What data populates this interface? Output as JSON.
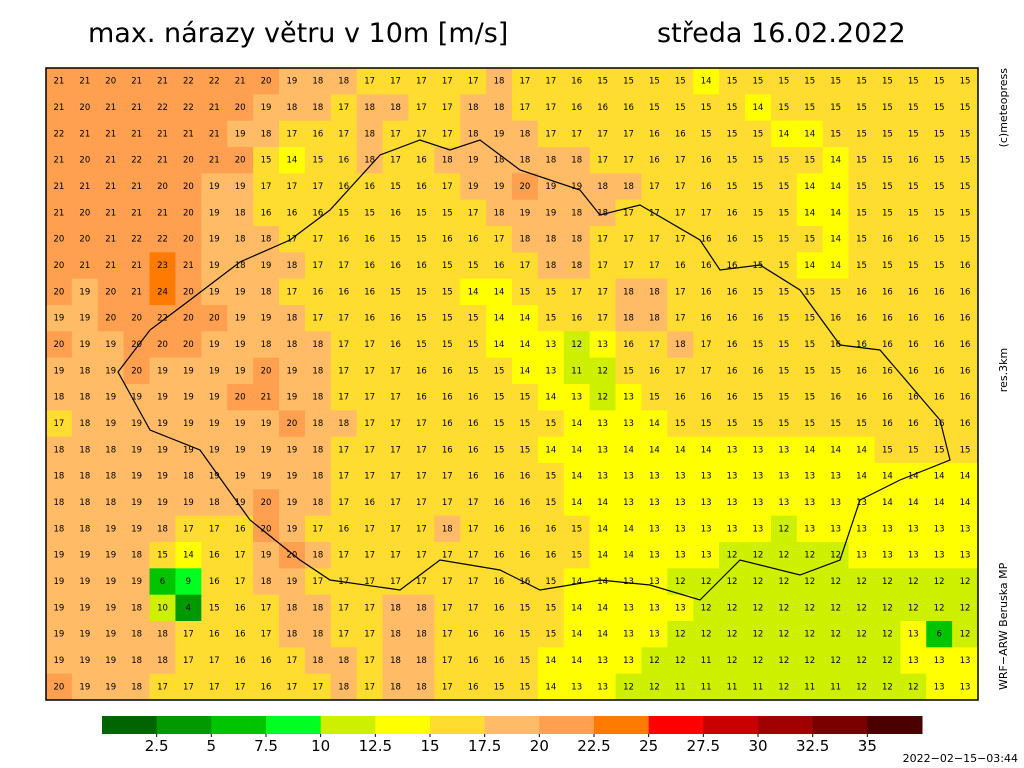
{
  "header": {
    "title": "max. nárazy větru v 10m [m/s]",
    "date": "středa 16.02.2022"
  },
  "side_labels": {
    "copyright": "(c)meteopress",
    "resolution": "res.3km",
    "model": "WRF−ARW Beruska MP"
  },
  "timestamp": "2022−02−15−03:44",
  "colorbar": {
    "ticks": [
      2.5,
      5,
      7.5,
      10,
      12.5,
      15,
      17.5,
      20,
      22.5,
      25,
      27.5,
      30,
      32.5,
      35
    ],
    "colors": [
      "#006400",
      "#009a00",
      "#00c400",
      "#00ff20",
      "#ccf000",
      "#ffff00",
      "#ffdc30",
      "#ffbb66",
      "#ff9f50",
      "#ff7a00",
      "#ff0000",
      "#c80000",
      "#a00000",
      "#7a0000",
      "#4a0000"
    ]
  },
  "grid": {
    "rows": [
      [
        21,
        21,
        20,
        21,
        21,
        22,
        22,
        21,
        20,
        19,
        18,
        18,
        17,
        17,
        17,
        17,
        17,
        18,
        17,
        17,
        16,
        15,
        15,
        15,
        15,
        14,
        15,
        15,
        15,
        15,
        15,
        15,
        15,
        15,
        15,
        15
      ],
      [
        21,
        20,
        21,
        21,
        22,
        22,
        21,
        20,
        19,
        18,
        18,
        17,
        18,
        18,
        17,
        17,
        18,
        18,
        17,
        17,
        16,
        16,
        16,
        15,
        15,
        15,
        15,
        14,
        15,
        15,
        15,
        15,
        15,
        15,
        15,
        15
      ],
      [
        22,
        21,
        21,
        21,
        21,
        21,
        21,
        19,
        18,
        17,
        16,
        17,
        18,
        17,
        17,
        17,
        18,
        19,
        18,
        17,
        17,
        17,
        17,
        16,
        16,
        15,
        15,
        15,
        14,
        14,
        15,
        15,
        15,
        15,
        15,
        15
      ],
      [
        21,
        20,
        21,
        22,
        21,
        20,
        21,
        20,
        15,
        14,
        15,
        16,
        18,
        17,
        16,
        18,
        19,
        18,
        18,
        18,
        18,
        17,
        17,
        16,
        17,
        16,
        15,
        15,
        15,
        15,
        14,
        15,
        15,
        16,
        15,
        15
      ],
      [
        21,
        21,
        21,
        21,
        20,
        20,
        19,
        19,
        17,
        17,
        17,
        16,
        16,
        15,
        16,
        17,
        19,
        19,
        20,
        19,
        19,
        18,
        18,
        17,
        17,
        16,
        15,
        15,
        15,
        14,
        14,
        15,
        15,
        15,
        15,
        15
      ],
      [
        21,
        20,
        21,
        21,
        21,
        20,
        19,
        18,
        16,
        16,
        16,
        15,
        15,
        16,
        15,
        15,
        17,
        18,
        19,
        19,
        18,
        18,
        17,
        17,
        17,
        17,
        16,
        15,
        15,
        14,
        14,
        15,
        15,
        15,
        15,
        15
      ],
      [
        20,
        20,
        21,
        22,
        22,
        20,
        19,
        18,
        18,
        17,
        17,
        16,
        16,
        15,
        15,
        16,
        16,
        17,
        18,
        18,
        18,
        17,
        17,
        17,
        17,
        16,
        16,
        15,
        15,
        15,
        14,
        15,
        16,
        16,
        15,
        15
      ],
      [
        20,
        21,
        21,
        21,
        23,
        21,
        19,
        18,
        19,
        18,
        17,
        17,
        16,
        16,
        16,
        15,
        15,
        16,
        17,
        18,
        18,
        17,
        17,
        17,
        16,
        16,
        16,
        15,
        15,
        14,
        14,
        15,
        15,
        15,
        15,
        16
      ],
      [
        20,
        19,
        20,
        21,
        24,
        20,
        19,
        19,
        18,
        17,
        16,
        16,
        16,
        15,
        15,
        15,
        14,
        14,
        15,
        15,
        17,
        17,
        18,
        18,
        17,
        16,
        16,
        15,
        15,
        15,
        15,
        16,
        16,
        16,
        16,
        16
      ],
      [
        19,
        19,
        20,
        20,
        22,
        20,
        20,
        19,
        19,
        18,
        17,
        17,
        16,
        16,
        15,
        15,
        15,
        14,
        14,
        15,
        16,
        17,
        18,
        18,
        17,
        16,
        16,
        16,
        15,
        15,
        16,
        16,
        16,
        16,
        16,
        16
      ],
      [
        20,
        19,
        19,
        20,
        20,
        20,
        19,
        19,
        18,
        18,
        18,
        17,
        17,
        16,
        15,
        15,
        15,
        14,
        14,
        13,
        12,
        13,
        16,
        17,
        18,
        17,
        16,
        15,
        15,
        15,
        16,
        16,
        16,
        16,
        16,
        16
      ],
      [
        19,
        18,
        19,
        20,
        19,
        19,
        19,
        19,
        20,
        19,
        18,
        17,
        17,
        17,
        16,
        16,
        15,
        15,
        14,
        13,
        11,
        12,
        15,
        16,
        17,
        17,
        16,
        16,
        15,
        15,
        15,
        16,
        16,
        16,
        16,
        16
      ],
      [
        18,
        18,
        19,
        19,
        19,
        19,
        19,
        20,
        21,
        19,
        18,
        17,
        17,
        17,
        16,
        16,
        16,
        15,
        15,
        14,
        13,
        12,
        13,
        15,
        16,
        16,
        16,
        15,
        15,
        15,
        16,
        16,
        16,
        16,
        16,
        16
      ],
      [
        17,
        18,
        19,
        19,
        19,
        19,
        19,
        19,
        19,
        20,
        18,
        18,
        17,
        17,
        17,
        16,
        16,
        15,
        15,
        15,
        14,
        13,
        13,
        14,
        15,
        15,
        15,
        15,
        15,
        15,
        15,
        15,
        16,
        16,
        16,
        16
      ],
      [
        18,
        18,
        18,
        19,
        19,
        19,
        19,
        19,
        19,
        19,
        18,
        17,
        17,
        17,
        17,
        16,
        16,
        15,
        15,
        14,
        14,
        13,
        14,
        14,
        14,
        14,
        13,
        13,
        13,
        14,
        14,
        14,
        15,
        15,
        15,
        15
      ],
      [
        18,
        18,
        18,
        19,
        19,
        18,
        19,
        19,
        19,
        19,
        18,
        17,
        17,
        17,
        17,
        17,
        16,
        16,
        16,
        15,
        14,
        13,
        13,
        13,
        13,
        13,
        13,
        13,
        13,
        13,
        13,
        14,
        14,
        14,
        14,
        14
      ],
      [
        18,
        18,
        18,
        19,
        19,
        19,
        18,
        19,
        20,
        19,
        18,
        17,
        16,
        17,
        17,
        17,
        17,
        16,
        16,
        15,
        14,
        14,
        13,
        13,
        13,
        13,
        13,
        13,
        13,
        13,
        13,
        13,
        14,
        14,
        14,
        14
      ],
      [
        18,
        18,
        19,
        19,
        18,
        17,
        17,
        16,
        20,
        19,
        17,
        16,
        17,
        17,
        17,
        18,
        17,
        16,
        16,
        16,
        15,
        14,
        14,
        13,
        13,
        13,
        13,
        13,
        12,
        13,
        13,
        13,
        13,
        13,
        13,
        13
      ],
      [
        19,
        19,
        19,
        18,
        15,
        14,
        16,
        17,
        19,
        20,
        18,
        17,
        17,
        17,
        17,
        17,
        17,
        16,
        16,
        16,
        15,
        14,
        14,
        13,
        13,
        13,
        12,
        12,
        12,
        12,
        12,
        13,
        13,
        13,
        13,
        13
      ],
      [
        19,
        19,
        19,
        19,
        6,
        9,
        16,
        17,
        18,
        19,
        17,
        17,
        17,
        17,
        17,
        17,
        17,
        16,
        16,
        15,
        14,
        14,
        13,
        13,
        12,
        12,
        12,
        12,
        12,
        12,
        12,
        12,
        12,
        12,
        12,
        12
      ],
      [
        19,
        19,
        19,
        18,
        10,
        4,
        15,
        16,
        17,
        18,
        18,
        17,
        17,
        18,
        18,
        17,
        17,
        16,
        15,
        15,
        14,
        14,
        13,
        13,
        13,
        12,
        12,
        12,
        12,
        12,
        12,
        12,
        12,
        12,
        12,
        12
      ],
      [
        19,
        19,
        19,
        18,
        18,
        17,
        16,
        16,
        17,
        18,
        18,
        17,
        17,
        18,
        18,
        17,
        16,
        16,
        15,
        15,
        14,
        14,
        13,
        13,
        12,
        12,
        12,
        12,
        12,
        12,
        12,
        12,
        12,
        13,
        6,
        12
      ],
      [
        19,
        19,
        19,
        18,
        18,
        17,
        17,
        16,
        16,
        17,
        18,
        18,
        17,
        18,
        18,
        17,
        16,
        16,
        15,
        14,
        14,
        13,
        13,
        12,
        12,
        11,
        12,
        12,
        12,
        12,
        12,
        12,
        12,
        13,
        13,
        13
      ],
      [
        20,
        19,
        19,
        18,
        17,
        17,
        17,
        17,
        16,
        17,
        17,
        18,
        17,
        18,
        18,
        17,
        16,
        15,
        15,
        14,
        13,
        13,
        12,
        12,
        11,
        11,
        11,
        11,
        12,
        11,
        11,
        12,
        12,
        12,
        13,
        13
      ]
    ]
  }
}
